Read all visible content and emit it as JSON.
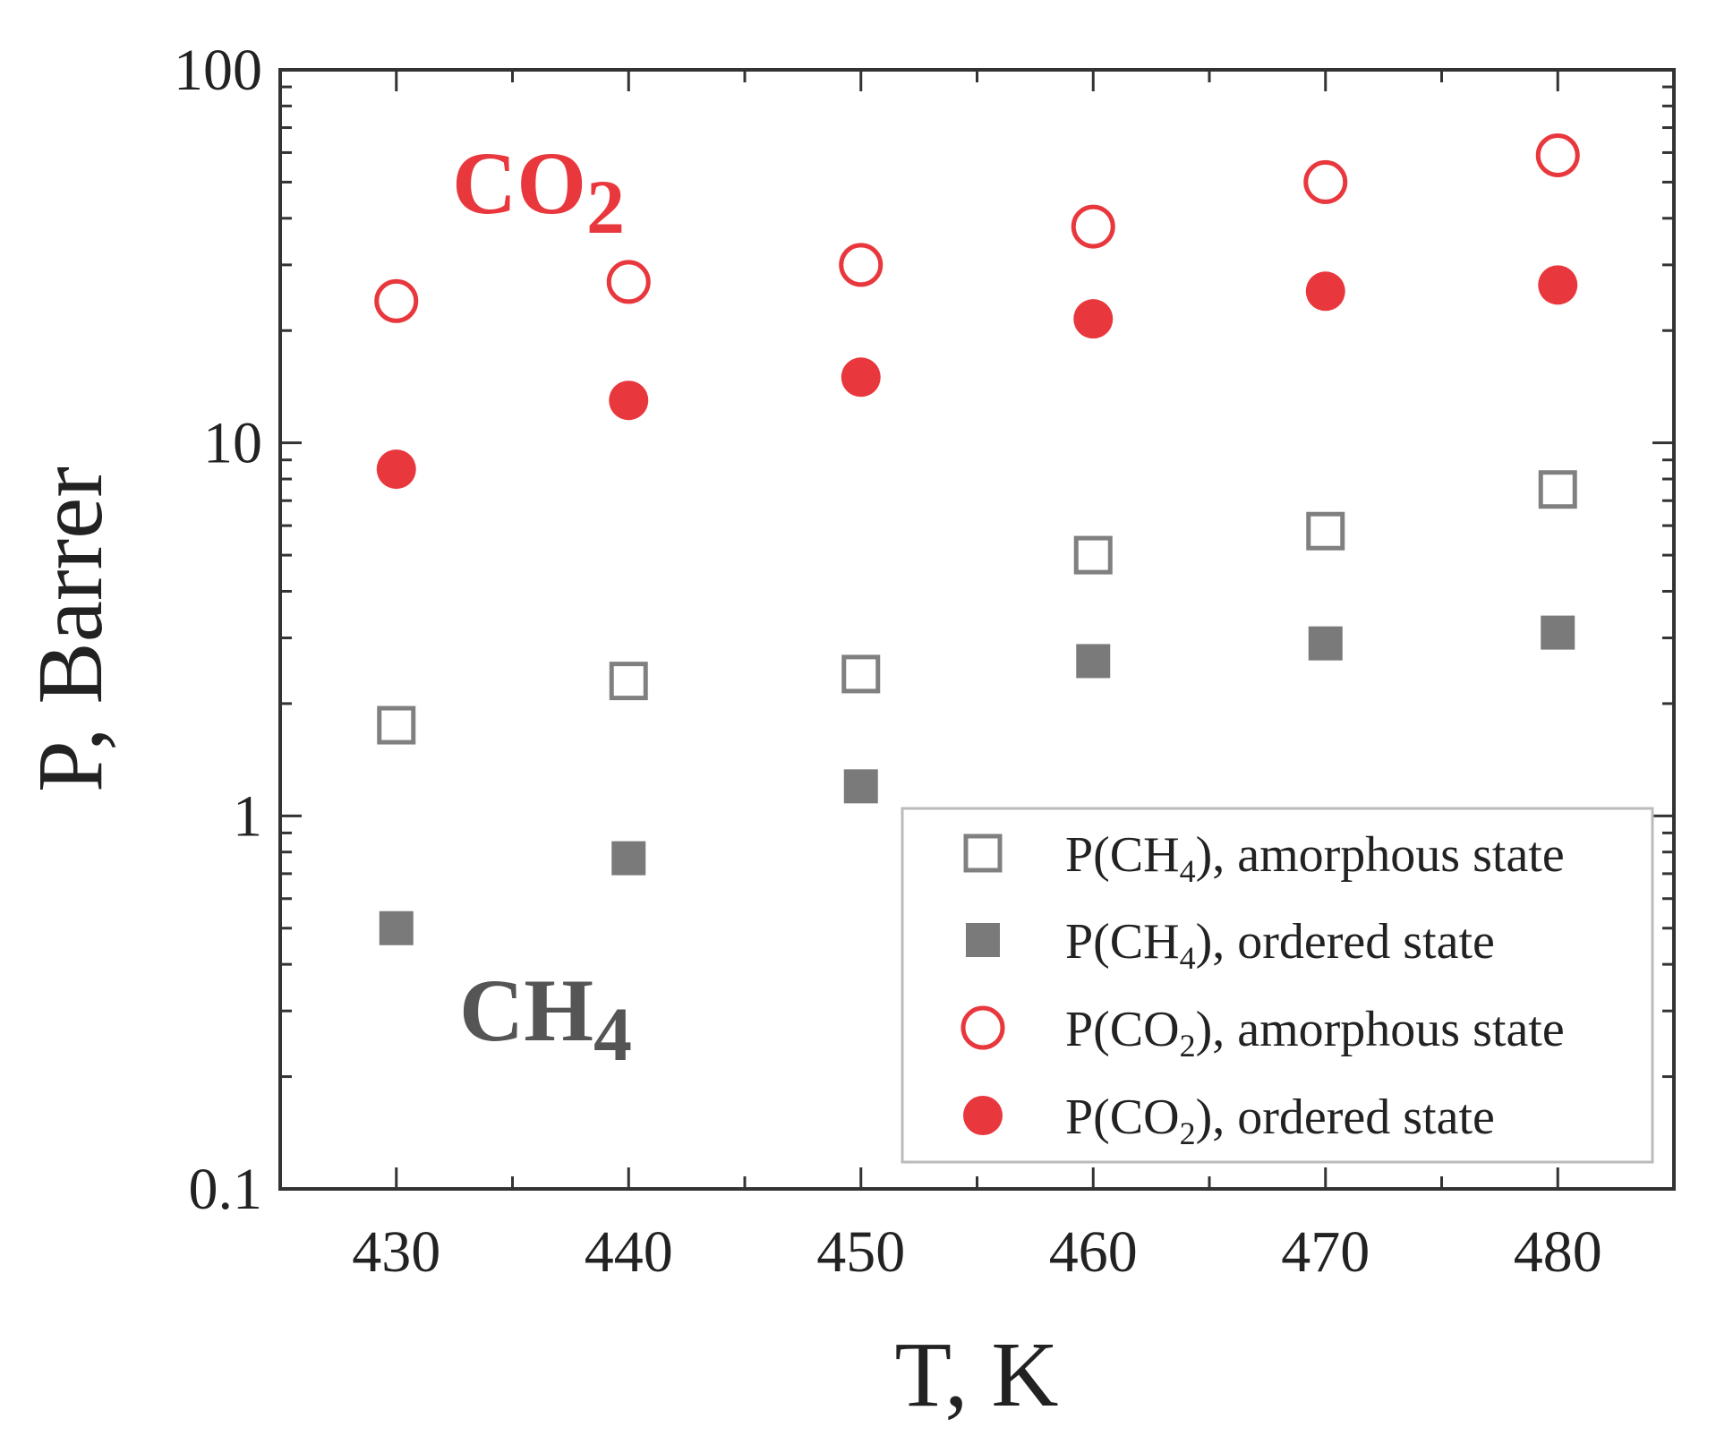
{
  "chart_data": {
    "type": "scatter",
    "x_scale": "linear",
    "y_scale": "log",
    "xlabel": "T, K",
    "ylabel": "P, Barrer",
    "xlim": [
      425,
      485
    ],
    "ylim": [
      0.1,
      100
    ],
    "x_ticks": [
      430,
      440,
      450,
      460,
      470,
      480
    ],
    "x_tick_labels": [
      "430",
      "440",
      "450",
      "460",
      "470",
      "480"
    ],
    "y_ticks": [
      0.1,
      1,
      10,
      100
    ],
    "y_tick_labels": [
      "0.1",
      "1",
      "10",
      "100"
    ],
    "series": [
      {
        "name": "P(CH4), amorphous state",
        "label_parts": [
          "P(CH",
          "4",
          "), amorphous state"
        ],
        "marker": "square-open",
        "color": "#808080",
        "x": [
          430,
          440,
          450,
          460,
          470,
          480
        ],
        "y": [
          1.75,
          2.3,
          2.4,
          5.0,
          5.8,
          7.5
        ]
      },
      {
        "name": "P(CH4), ordered state",
        "label_parts": [
          "P(CH",
          "4",
          "), ordered state"
        ],
        "marker": "square-filled",
        "color": "#7a7a7a",
        "x": [
          430,
          440,
          450,
          460,
          470,
          480
        ],
        "y": [
          0.5,
          0.77,
          1.2,
          2.6,
          2.9,
          3.1
        ]
      },
      {
        "name": "P(CO2), amorphous state",
        "label_parts": [
          "P(CO",
          "2",
          "), amorphous state"
        ],
        "marker": "circle-open",
        "color": "#e8383d",
        "x": [
          430,
          440,
          450,
          460,
          470,
          480
        ],
        "y": [
          24,
          27,
          30,
          38,
          50,
          59
        ]
      },
      {
        "name": "P(CO2), ordered state",
        "label_parts": [
          "P(CO",
          "2",
          "), ordered state"
        ],
        "marker": "circle-filled",
        "color": "#e8383d",
        "x": [
          430,
          440,
          450,
          460,
          470,
          480
        ],
        "y": [
          8.5,
          13,
          15,
          21.5,
          25.5,
          26.5
        ]
      }
    ],
    "annotations": [
      {
        "text": "CO",
        "sub": "2",
        "color": "#e8383d"
      },
      {
        "text": "CH",
        "sub": "4",
        "color": "#555555"
      }
    ],
    "legend_position": "bottom-right",
    "grid": false
  }
}
